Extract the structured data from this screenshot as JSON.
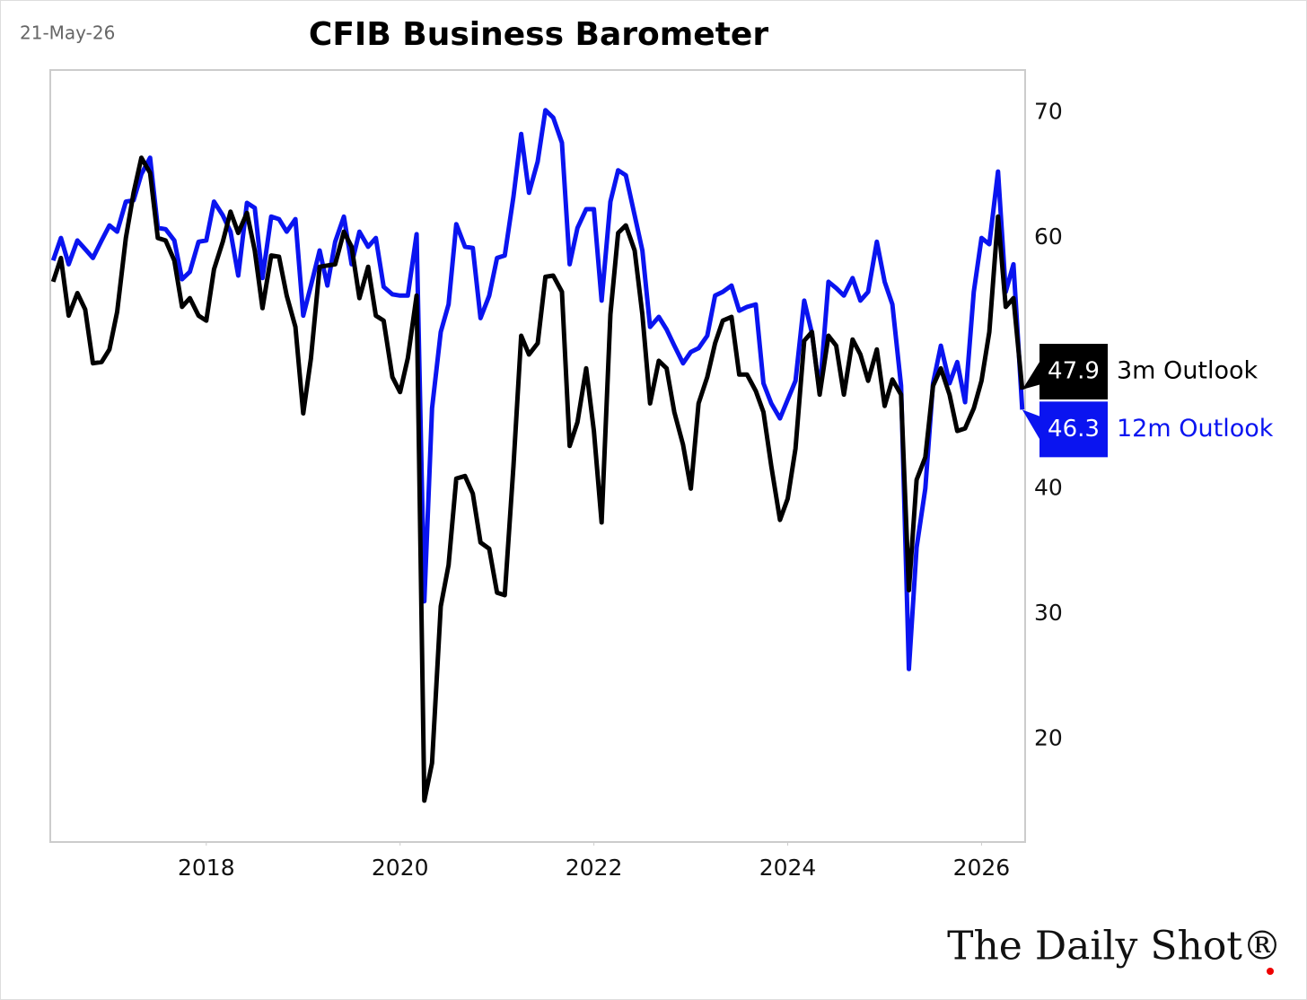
{
  "chart_data": {
    "type": "line",
    "title": "CFIB Business Barometer",
    "date": "21-May-26",
    "source": "The Daily Shot®",
    "x": [
      2016.42,
      2016.5,
      2016.58,
      2016.67,
      2016.75,
      2016.83,
      2016.92,
      2017.0,
      2017.08,
      2017.17,
      2017.25,
      2017.33,
      2017.42,
      2017.5,
      2017.58,
      2017.67,
      2017.75,
      2017.83,
      2017.92,
      2018.0,
      2018.08,
      2018.17,
      2018.25,
      2018.33,
      2018.42,
      2018.5,
      2018.58,
      2018.67,
      2018.75,
      2018.83,
      2018.92,
      2019.0,
      2019.08,
      2019.17,
      2019.25,
      2019.33,
      2019.42,
      2019.5,
      2019.58,
      2019.67,
      2019.75,
      2019.83,
      2019.92,
      2020.0,
      2020.08,
      2020.17,
      2020.25,
      2020.33,
      2020.42,
      2020.5,
      2020.58,
      2020.67,
      2020.75,
      2020.83,
      2020.92,
      2021.0,
      2021.08,
      2021.17,
      2021.25,
      2021.33,
      2021.42,
      2021.5,
      2021.58,
      2021.67,
      2021.75,
      2021.83,
      2021.92,
      2022.0,
      2022.08,
      2022.17,
      2022.25,
      2022.33,
      2022.42,
      2022.5,
      2022.58,
      2022.67,
      2022.75,
      2022.83,
      2022.92,
      2023.0,
      2023.08,
      2023.17,
      2023.25,
      2023.33,
      2023.42,
      2023.5,
      2023.58,
      2023.67,
      2023.75,
      2023.83,
      2023.92,
      2024.0,
      2024.08,
      2024.17,
      2024.25,
      2024.33,
      2024.42,
      2024.5,
      2024.58,
      2024.67,
      2024.75,
      2024.83,
      2024.92,
      2025.0,
      2025.08,
      2025.17,
      2025.25,
      2025.33,
      2025.42,
      2025.5,
      2025.58,
      2025.67,
      2025.75,
      2025.83,
      2025.92,
      2026.0,
      2026.08,
      2026.17,
      2026.25,
      2026.33,
      2026.42
    ],
    "series": [
      {
        "name": "3m Outlook",
        "color": "#000000",
        "values": [
          56.5,
          58.4,
          53.8,
          55.6,
          54.3,
          50.0,
          50.1,
          51.1,
          54.1,
          60.0,
          63.6,
          66.4,
          65.2,
          60.0,
          59.8,
          58.2,
          54.5,
          55.2,
          53.8,
          53.4,
          57.5,
          59.7,
          62.1,
          60.4,
          62.0,
          59.0,
          54.4,
          58.6,
          58.5,
          55.4,
          52.9,
          46.0,
          50.4,
          57.7,
          57.8,
          57.9,
          60.5,
          59.3,
          55.2,
          57.7,
          53.8,
          53.4,
          48.9,
          47.7,
          50.4,
          55.4,
          15.1,
          18.1,
          30.6,
          33.9,
          40.8,
          41.0,
          39.6,
          35.7,
          35.2,
          31.7,
          31.5,
          41.8,
          52.2,
          50.7,
          51.6,
          56.9,
          57.0,
          55.7,
          43.4,
          45.3,
          49.6,
          44.6,
          37.3,
          53.9,
          60.4,
          61.0,
          59.0,
          53.9,
          46.8,
          50.2,
          49.6,
          46.1,
          43.5,
          40.0,
          46.8,
          48.9,
          51.6,
          53.4,
          53.7,
          49.1,
          49.1,
          47.8,
          46.1,
          41.8,
          37.5,
          39.2,
          43.2,
          51.8,
          52.5,
          47.5,
          52.2,
          51.4,
          47.5,
          51.9,
          50.7,
          48.6,
          51.1,
          46.6,
          48.7,
          47.5,
          31.9,
          40.7,
          42.5,
          48.2,
          49.6,
          47.5,
          44.6,
          44.8,
          46.4,
          48.6,
          52.5,
          61.7,
          54.5,
          55.2,
          47.9
        ]
      },
      {
        "name": "12m Outlook",
        "color": "#0a14f0",
        "values": [
          58.2,
          60.0,
          57.9,
          59.8,
          59.1,
          58.4,
          59.8,
          61.0,
          60.5,
          62.9,
          63.0,
          65.1,
          66.4,
          60.8,
          60.7,
          59.8,
          56.7,
          57.3,
          59.7,
          59.8,
          62.9,
          61.8,
          60.5,
          57.0,
          62.8,
          62.4,
          56.8,
          61.7,
          61.5,
          60.5,
          61.5,
          53.8,
          56.2,
          59.0,
          56.2,
          59.7,
          61.7,
          57.9,
          60.5,
          59.3,
          60.0,
          56.1,
          55.5,
          55.4,
          55.4,
          60.3,
          31.0,
          46.4,
          52.5,
          54.7,
          61.1,
          59.3,
          59.2,
          53.6,
          55.4,
          58.4,
          58.6,
          63.3,
          68.3,
          63.6,
          66.1,
          70.2,
          69.6,
          67.6,
          57.9,
          60.8,
          62.3,
          62.3,
          55.0,
          62.9,
          65.4,
          65.0,
          61.8,
          59.0,
          52.9,
          53.7,
          52.7,
          51.4,
          50.0,
          50.9,
          51.2,
          52.2,
          55.4,
          55.7,
          56.2,
          54.2,
          54.5,
          54.7,
          48.4,
          46.8,
          45.6,
          47.1,
          48.6,
          55.0,
          52.4,
          47.7,
          56.5,
          56.0,
          55.4,
          56.8,
          55.0,
          55.7,
          59.7,
          56.5,
          54.7,
          48.2,
          25.6,
          35.3,
          40.0,
          48.4,
          51.4,
          48.4,
          50.1,
          46.9,
          55.7,
          60.0,
          59.5,
          65.3,
          55.7,
          57.9,
          46.3
        ]
      }
    ],
    "xlim": [
      2016.39,
      2026.45
    ],
    "xticks": [
      2018,
      2020,
      2022,
      2024,
      2026
    ],
    "ylim": [
      11.8,
      73.4
    ],
    "yticks": [
      20,
      30,
      40,
      60,
      70
    ],
    "grid": false
  }
}
